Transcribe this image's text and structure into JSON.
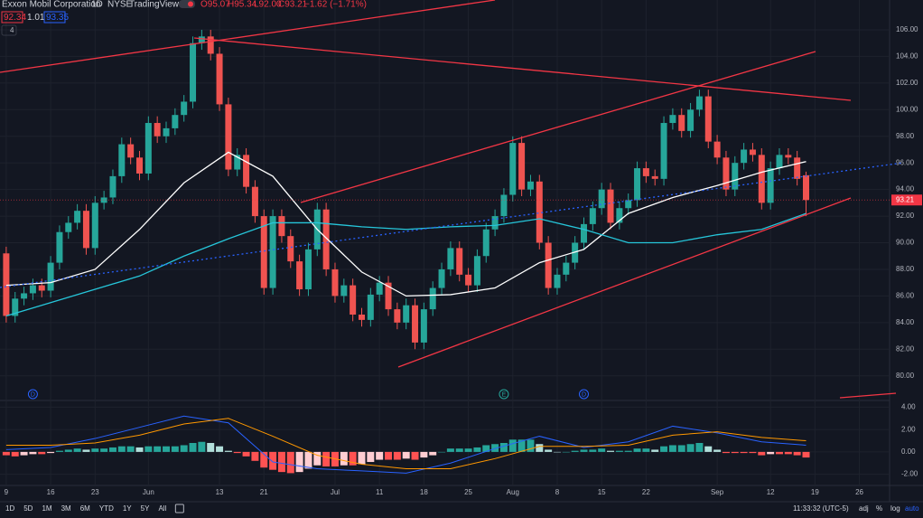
{
  "header": {
    "name": "Exxon Mobil Corporation",
    "interval": "1D",
    "exchange": "NYSE",
    "source": "TradingView",
    "ohlc": [
      "O95.07",
      "H95.34",
      "L92.00",
      "C93.21",
      "−1.62 (−1.71%)"
    ],
    "bid": "92.34",
    "spread": "1.01",
    "ask": "93.35",
    "indicators": "4"
  },
  "chart_data": [
    {
      "type": "candlestick",
      "xlim": [
        -0.7,
        99.4
      ],
      "ylim": [
        78.35,
        108.24
      ],
      "up_color": "#26a69a",
      "down_color": "#ef5350",
      "grid": true,
      "yticks": [
        {
          "value": 80,
          "label": "80.00"
        },
        {
          "value": 82,
          "label": "82.00"
        },
        {
          "value": 84,
          "label": "84.00"
        },
        {
          "value": 86,
          "label": "86.00"
        },
        {
          "value": 88,
          "label": "88.00"
        },
        {
          "value": 90,
          "label": "90.00"
        },
        {
          "value": 92,
          "label": "92.00"
        },
        {
          "value": 94,
          "label": "94.00"
        },
        {
          "value": 96,
          "label": "96.00"
        },
        {
          "value": 98,
          "label": "98.00"
        },
        {
          "value": 100,
          "label": "100.00"
        },
        {
          "value": 102,
          "label": "102.00"
        },
        {
          "value": 104,
          "label": "104.00"
        },
        {
          "value": 106,
          "label": "106.00"
        }
      ],
      "xticks": [
        {
          "value": 0,
          "label": "9"
        },
        {
          "value": 5,
          "label": "16"
        },
        {
          "value": 10,
          "label": "23"
        },
        {
          "value": 16,
          "label": "Jun"
        },
        {
          "value": 24,
          "label": "13"
        },
        {
          "value": 29,
          "label": "21"
        },
        {
          "value": 37,
          "label": "Jul"
        },
        {
          "value": 42,
          "label": "11"
        },
        {
          "value": 47,
          "label": "18"
        },
        {
          "value": 52,
          "label": "25"
        },
        {
          "value": 57,
          "label": "Aug"
        },
        {
          "value": 62,
          "label": "8"
        },
        {
          "value": 67,
          "label": "15"
        },
        {
          "value": 72,
          "label": "22"
        },
        {
          "value": 80,
          "label": "Sep"
        },
        {
          "value": 86,
          "label": "12"
        },
        {
          "value": 91,
          "label": "19"
        },
        {
          "value": 96,
          "label": "26"
        }
      ],
      "open": [
        89.2,
        84.5,
        85.8,
        86.2,
        86.8,
        86.4,
        88.5,
        90.8,
        91.5,
        92.4,
        89.6,
        93.0,
        93.4,
        95.0,
        97.4,
        96.4,
        95.2,
        99.0,
        98.0,
        98.6,
        99.6,
        100.6,
        105.0,
        105.5,
        104.2,
        100.4,
        95.5,
        96.6,
        94.2,
        92.0,
        86.6,
        92.0,
        90.5,
        88.6,
        86.5,
        89.5,
        92.5,
        88.0,
        86.0,
        86.8,
        84.6,
        84.2,
        86.1,
        87.0,
        85.0,
        84.0,
        85.3,
        82.5,
        85.0,
        86.6,
        88.0,
        89.6,
        87.6,
        86.8,
        89.0,
        91.0,
        92.0,
        93.6,
        97.5,
        94.0,
        94.6,
        90.0,
        86.6,
        87.6,
        88.5,
        90.0,
        91.4,
        92.6,
        94.0,
        91.5,
        92.6,
        93.2,
        95.6,
        95.0,
        94.8,
        99.0,
        99.6,
        98.4,
        100.0,
        101.0,
        97.6,
        96.4,
        94.0,
        96.0,
        97.0,
        96.6,
        93.0,
        95.6,
        96.6,
        96.4,
        95.07
      ],
      "high": [
        89.7,
        86.3,
        86.7,
        87.3,
        87.3,
        89.0,
        91.3,
        92.0,
        92.9,
        92.9,
        93.5,
        93.9,
        95.5,
        97.9,
        97.9,
        96.9,
        99.5,
        99.5,
        99.1,
        100.1,
        101.1,
        105.5,
        106.0,
        106.0,
        104.7,
        100.9,
        97.1,
        97.1,
        94.7,
        92.5,
        92.5,
        92.5,
        91.0,
        89.1,
        90.0,
        93.0,
        93.0,
        88.5,
        87.3,
        87.3,
        85.1,
        86.6,
        87.5,
        87.5,
        85.5,
        85.8,
        85.8,
        85.5,
        87.1,
        88.5,
        90.1,
        90.1,
        88.1,
        89.5,
        91.5,
        92.5,
        94.1,
        98.0,
        98.0,
        95.1,
        95.1,
        90.5,
        88.1,
        89.0,
        90.5,
        91.9,
        93.1,
        94.5,
        94.5,
        93.1,
        93.7,
        96.1,
        96.1,
        95.5,
        99.5,
        100.1,
        100.1,
        100.5,
        101.5,
        101.5,
        98.1,
        96.9,
        96.5,
        97.5,
        97.5,
        97.1,
        96.1,
        97.1,
        97.1,
        96.9,
        95.34
      ],
      "low": [
        84.0,
        84.0,
        85.3,
        85.7,
        85.9,
        85.9,
        88.0,
        90.3,
        91.0,
        89.1,
        89.1,
        92.5,
        92.9,
        94.5,
        95.9,
        94.7,
        94.7,
        97.5,
        97.5,
        98.1,
        99.1,
        100.1,
        104.5,
        103.7,
        99.9,
        95.0,
        95.0,
        93.7,
        91.5,
        86.1,
        86.1,
        90.0,
        88.1,
        86.0,
        86.0,
        89.0,
        87.5,
        85.5,
        85.5,
        84.1,
        83.7,
        83.7,
        85.6,
        84.5,
        83.5,
        83.5,
        82.0,
        82.0,
        84.5,
        86.1,
        87.5,
        87.1,
        86.3,
        86.3,
        88.5,
        90.5,
        91.5,
        93.1,
        93.5,
        93.5,
        89.5,
        86.1,
        86.1,
        87.1,
        88.0,
        89.5,
        90.9,
        92.1,
        91.0,
        91.0,
        92.1,
        92.7,
        94.5,
        94.3,
        94.3,
        98.5,
        97.9,
        97.9,
        99.5,
        97.1,
        95.9,
        93.5,
        93.5,
        95.5,
        96.1,
        92.5,
        92.5,
        95.1,
        95.9,
        94.3,
        92.0
      ],
      "close": [
        84.5,
        85.8,
        86.2,
        86.8,
        86.4,
        88.5,
        90.8,
        91.5,
        92.4,
        89.6,
        93.0,
        93.4,
        95.0,
        97.4,
        96.4,
        95.2,
        99.0,
        98.0,
        98.6,
        99.6,
        100.6,
        105.0,
        105.5,
        104.2,
        100.4,
        95.5,
        96.6,
        94.2,
        92.0,
        86.6,
        92.0,
        90.5,
        88.6,
        86.5,
        89.5,
        92.5,
        88.0,
        86.0,
        86.8,
        84.6,
        84.2,
        86.1,
        87.0,
        85.0,
        84.0,
        85.3,
        82.5,
        85.0,
        86.6,
        88.0,
        89.6,
        87.6,
        86.8,
        89.0,
        91.0,
        92.0,
        93.6,
        97.5,
        94.0,
        94.6,
        90.0,
        86.6,
        87.6,
        88.5,
        90.0,
        91.4,
        92.6,
        94.0,
        91.5,
        92.6,
        93.2,
        95.6,
        95.0,
        94.8,
        99.0,
        99.6,
        98.4,
        100.0,
        101.0,
        97.6,
        96.4,
        94.0,
        96.0,
        97.0,
        96.6,
        93.0,
        95.6,
        96.6,
        96.4,
        94.8,
        93.21
      ],
      "last_value_label": "93.21",
      "last_color": "#f23645",
      "moving_averages": [
        {
          "color": "#ffffff",
          "x": [
            0,
            5,
            10,
            15,
            20,
            25,
            30,
            35,
            40,
            45,
            50,
            55,
            60,
            65,
            70,
            75,
            80,
            85,
            90
          ],
          "values": [
            86.8,
            87.0,
            88.0,
            91.0,
            94.5,
            96.8,
            95.0,
            91.0,
            87.8,
            86.0,
            86.1,
            86.6,
            88.5,
            89.5,
            92.2,
            93.4,
            94.3,
            95.3,
            96.1
          ]
        },
        {
          "color": "#26c6da",
          "x": [
            0,
            5,
            10,
            15,
            20,
            25,
            30,
            35,
            40,
            45,
            50,
            55,
            60,
            65,
            70,
            75,
            80,
            85,
            90
          ],
          "values": [
            84.5,
            85.5,
            86.5,
            87.5,
            89.0,
            90.3,
            91.5,
            91.5,
            91.2,
            91.0,
            91.2,
            91.3,
            91.8,
            91.0,
            90.0,
            90.0,
            90.6,
            91.0,
            92.2
          ]
        }
      ],
      "events": [
        {
          "x": 3,
          "label": "D"
        },
        {
          "x": 56,
          "label": "E"
        },
        {
          "x": 65,
          "label": "D"
        }
      ]
    },
    {
      "type": "macd",
      "xlim": [
        -0.7,
        99.4
      ],
      "ylim": [
        -3,
        4.6
      ],
      "yticks": [
        {
          "value": -2,
          "label": "-2.00"
        },
        {
          "value": 0,
          "label": "0.00"
        },
        {
          "value": 2,
          "label": "2.00"
        },
        {
          "value": 4,
          "label": "4.00"
        }
      ],
      "hist_colors": [
        "#26a69a",
        "#b2dfdb",
        "#ffcdd2",
        "#ff5252"
      ],
      "histogram": [
        -0.3,
        -0.4,
        -0.3,
        -0.2,
        -0.2,
        -0.1,
        0.1,
        0.2,
        0.3,
        0.2,
        0.3,
        0.3,
        0.4,
        0.5,
        0.5,
        0.4,
        0.5,
        0.5,
        0.5,
        0.5,
        0.6,
        0.8,
        0.9,
        0.8,
        0.5,
        0.1,
        -0.1,
        -0.4,
        -0.8,
        -1.4,
        -1.6,
        -1.8,
        -1.9,
        -1.8,
        -1.5,
        -1.2,
        -1.3,
        -1.3,
        -1.2,
        -1.2,
        -1.1,
        -0.9,
        -0.7,
        -0.7,
        -0.7,
        -0.6,
        -0.7,
        -0.5,
        -0.3,
        0.0,
        0.3,
        0.3,
        0.3,
        0.4,
        0.6,
        0.7,
        0.8,
        1.1,
        1.1,
        1.1,
        0.7,
        0.2,
        0.0,
        0.0,
        0.1,
        0.2,
        0.2,
        0.3,
        0.1,
        0.1,
        0.1,
        0.3,
        0.3,
        0.2,
        0.5,
        0.6,
        0.6,
        0.7,
        0.8,
        0.5,
        0.2,
        -0.1,
        -0.1,
        -0.1,
        -0.1,
        -0.3,
        -0.2,
        -0.2,
        -0.2,
        -0.3,
        -0.5
      ],
      "series": [
        {
          "color": "#2962ff",
          "x": [
            0,
            5,
            10,
            15,
            20,
            25,
            30,
            35,
            40,
            45,
            50,
            55,
            60,
            65,
            70,
            75,
            80,
            85,
            90
          ],
          "values": [
            0.2,
            0.4,
            1.2,
            2.2,
            3.2,
            2.6,
            -0.9,
            -1.5,
            -1.7,
            -1.9,
            -1.0,
            0.3,
            1.4,
            0.4,
            0.9,
            2.3,
            1.7,
            0.9,
            0.6
          ]
        },
        {
          "color": "#ff9800",
          "x": [
            0,
            5,
            10,
            15,
            20,
            25,
            30,
            35,
            40,
            45,
            50,
            55,
            60,
            65,
            70,
            75,
            80,
            85,
            90
          ],
          "values": [
            0.6,
            0.6,
            0.8,
            1.5,
            2.5,
            3.0,
            1.4,
            -0.3,
            -1.1,
            -1.5,
            -1.5,
            -0.6,
            0.5,
            0.5,
            0.6,
            1.5,
            1.8,
            1.3,
            1.0
          ]
        }
      ]
    }
  ],
  "toolbar": {
    "ranges": [
      "1D",
      "5D",
      "1M",
      "3M",
      "6M",
      "YTD",
      "1Y",
      "5Y",
      "All"
    ],
    "time": "11:33:32 (UTC-5)",
    "options": [
      "adj",
      "%",
      "log",
      "auto"
    ]
  }
}
